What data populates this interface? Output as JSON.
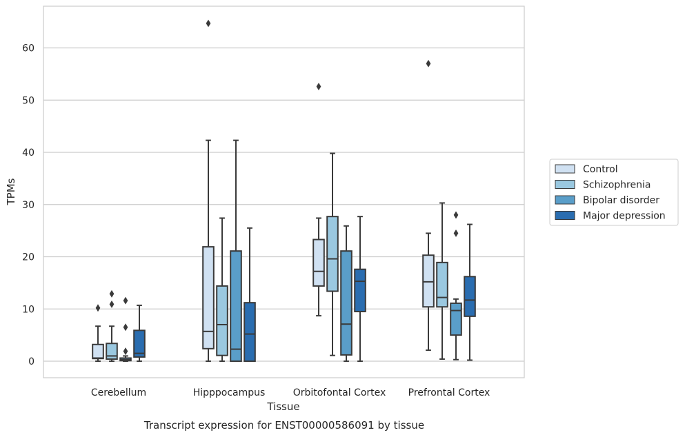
{
  "chart_data": {
    "type": "box",
    "caption": "Transcript expression for ENST00000586091 by tissue",
    "xlabel": "Tissue",
    "ylabel": "TPMs",
    "ylim": [
      -3,
      68
    ],
    "yticks": [
      0,
      10,
      20,
      30,
      40,
      50,
      60
    ],
    "grid": true,
    "legend_position": "right",
    "categories": [
      "Cerebellum",
      "Hipppocampus",
      "Orbitofontal Cortex",
      "Prefrontal Cortex"
    ],
    "series": [
      {
        "name": "Control",
        "color": "#d0e1f2",
        "boxes": [
          {
            "whisker_low": 0.0,
            "q1": 0.5,
            "median": 0.6,
            "q3": 3.2,
            "whisker_high": 6.7,
            "outliers": [
              10.2
            ]
          },
          {
            "whisker_low": 0.0,
            "q1": 2.4,
            "median": 5.7,
            "q3": 21.9,
            "whisker_high": 42.3,
            "outliers": [
              64.7
            ]
          },
          {
            "whisker_low": 8.7,
            "q1": 14.4,
            "median": 17.2,
            "q3": 23.3,
            "whisker_high": 27.4,
            "outliers": [
              52.6
            ]
          },
          {
            "whisker_low": 2.1,
            "q1": 10.4,
            "median": 15.2,
            "q3": 20.3,
            "whisker_high": 24.5,
            "outliers": [
              57.0
            ]
          }
        ]
      },
      {
        "name": "Schizophrenia",
        "color": "#9ac8e0",
        "boxes": [
          {
            "whisker_low": 0.0,
            "q1": 0.4,
            "median": 1.0,
            "q3": 3.4,
            "whisker_high": 6.7,
            "outliers": [
              10.9,
              12.9
            ]
          },
          {
            "whisker_low": 0.0,
            "q1": 1.1,
            "median": 7.0,
            "q3": 14.4,
            "whisker_high": 27.4,
            "outliers": []
          },
          {
            "whisker_low": 1.1,
            "q1": 13.4,
            "median": 19.6,
            "q3": 27.7,
            "whisker_high": 39.8,
            "outliers": []
          },
          {
            "whisker_low": 0.4,
            "q1": 10.4,
            "median": 12.2,
            "q3": 18.9,
            "whisker_high": 30.3,
            "outliers": []
          }
        ]
      },
      {
        "name": "Bipolar disorder",
        "color": "#5a9ec9",
        "boxes": [
          {
            "whisker_low": 0.0,
            "q1": 0.1,
            "median": 0.3,
            "q3": 0.6,
            "whisker_high": 1.0,
            "outliers": [
              1.9,
              6.5,
              11.6
            ]
          },
          {
            "whisker_low": 0.0,
            "q1": 0.0,
            "median": 2.3,
            "q3": 21.1,
            "whisker_high": 42.3,
            "outliers": []
          },
          {
            "whisker_low": 0.0,
            "q1": 1.2,
            "median": 7.1,
            "q3": 21.1,
            "whisker_high": 25.9,
            "outliers": []
          },
          {
            "whisker_low": 0.3,
            "q1": 5.0,
            "median": 9.7,
            "q3": 11.1,
            "whisker_high": 11.9,
            "outliers": [
              24.5,
              28.0
            ]
          }
        ]
      },
      {
        "name": "Major depression",
        "color": "#2a6db0",
        "boxes": [
          {
            "whisker_low": 0.0,
            "q1": 0.8,
            "median": 1.5,
            "q3": 5.9,
            "whisker_high": 10.7,
            "outliers": []
          },
          {
            "whisker_low": 0.0,
            "q1": 0.0,
            "median": 5.2,
            "q3": 11.2,
            "whisker_high": 25.5,
            "outliers": []
          },
          {
            "whisker_low": 0.0,
            "q1": 9.5,
            "median": 15.3,
            "q3": 17.6,
            "whisker_high": 27.7,
            "outliers": []
          },
          {
            "whisker_low": 0.2,
            "q1": 8.6,
            "median": 11.7,
            "q3": 16.2,
            "whisker_high": 26.2,
            "outliers": []
          }
        ]
      }
    ],
    "colors": {
      "grid": "#cccccc",
      "frame": "#cccccc",
      "box_edge": "#3a3a3a",
      "legend_edge": "#cccccc"
    }
  }
}
